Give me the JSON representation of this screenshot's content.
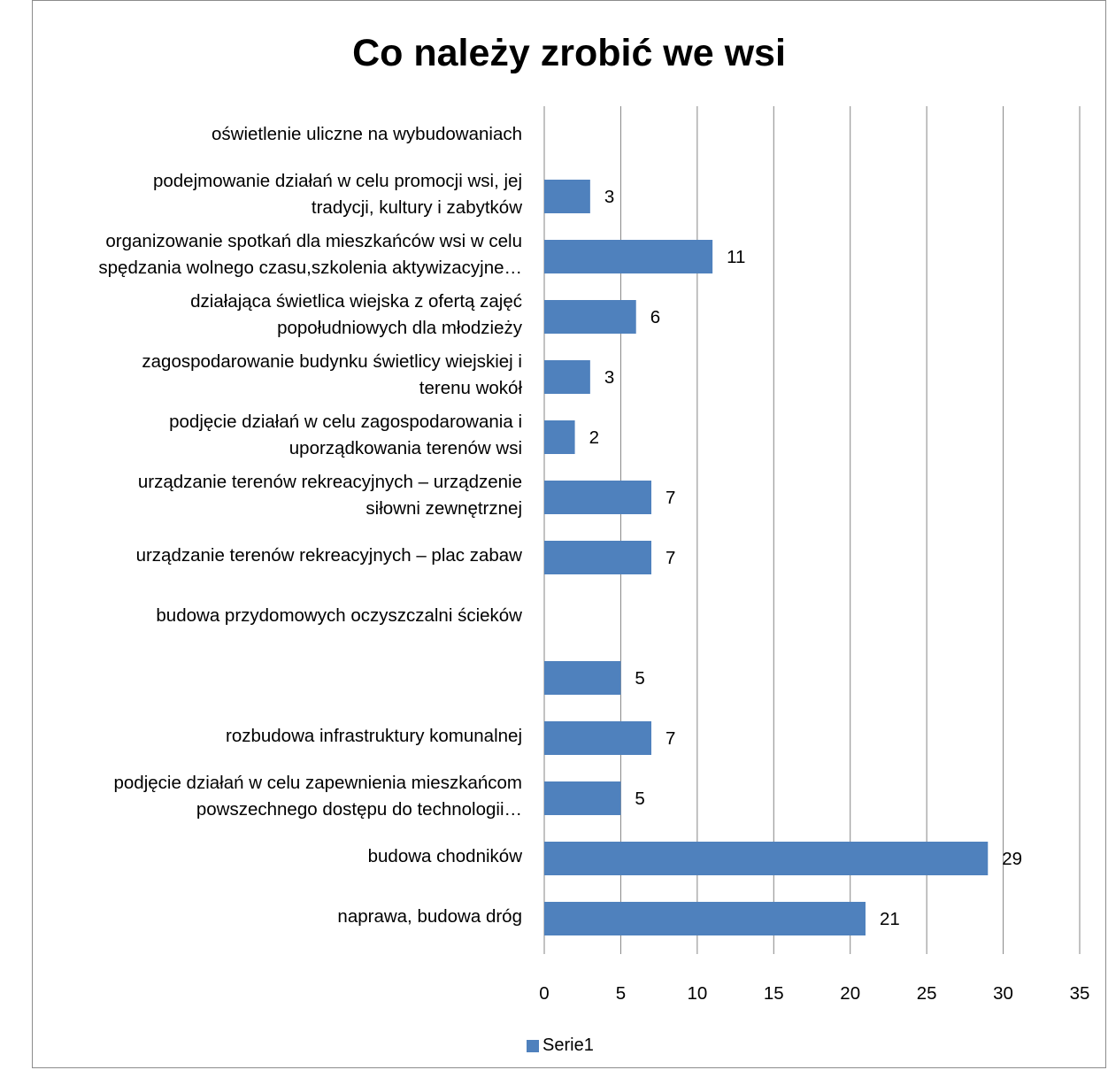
{
  "chart_data": {
    "type": "bar",
    "orientation": "horizontal",
    "title": "Co należy zrobić we wsi",
    "categories": [
      "naprawa, budowa dróg",
      "budowa chodników",
      "podjęcie działań w celu zapewnienia mieszkańcom powszechnego dostępu do technologii…",
      "rozbudowa infrastruktury komunalnej",
      "",
      "budowa przydomowych oczyszczalni ścieków",
      "urządzanie terenów rekreacyjnych – plac zabaw",
      "urządzanie terenów rekreacyjnych – urządzenie siłowni zewnętrznej",
      "podjęcie działań w celu zagospodarowania i uporządkowania terenów wsi",
      "zagospodarowanie budynku świetlicy wiejskiej i terenu wokół",
      "działająca świetlica wiejska z ofertą zajęć popołudniowych dla młodzieży",
      "organizowanie spotkań dla mieszkańców wsi w celu spędzania wolnego czasu,szkolenia aktywizacyjne…",
      "podejmowanie działań w celu promocji wsi, jej tradycji, kultury i zabytków",
      "oświetlenie uliczne na wybudowaniach"
    ],
    "label_lines": [
      [
        "naprawa, budowa dróg"
      ],
      [
        "budowa chodników"
      ],
      [
        "podjęcie działań w celu zapewnienia mieszkańcom",
        "powszechnego dostępu do technologii…"
      ],
      [
        "rozbudowa infrastruktury komunalnej"
      ],
      [],
      [
        "budowa przydomowych oczyszczalni ścieków"
      ],
      [
        "urządzanie terenów rekreacyjnych – plac zabaw"
      ],
      [
        "urządzanie terenów rekreacyjnych – urządzenie",
        "siłowni zewnętrznej"
      ],
      [
        "podjęcie działań w celu zagospodarowania i",
        "uporządkowania terenów wsi"
      ],
      [
        "zagospodarowanie budynku świetlicy wiejskiej i",
        "terenu wokół"
      ],
      [
        "działająca świetlica wiejska z ofertą zajęć",
        "popołudniowych dla młodzieży"
      ],
      [
        "organizowanie spotkań dla mieszkańców  wsi w celu",
        "spędzania wolnego czasu,szkolenia aktywizacyjne…"
      ],
      [
        "podejmowanie działań w celu promocji wsi, jej",
        "tradycji, kultury i zabytków"
      ],
      [
        "oświetlenie uliczne na wybudowaniach"
      ]
    ],
    "series": [
      {
        "name": "Serie1",
        "values": [
          21,
          29,
          5,
          7,
          5,
          null,
          7,
          7,
          2,
          3,
          6,
          11,
          3,
          null
        ],
        "color": "#4f81bd"
      }
    ],
    "xlim": [
      0,
      35
    ],
    "xticks": [
      0,
      5,
      10,
      15,
      20,
      25,
      30,
      35
    ],
    "grid": true,
    "gridline_color": "#868686",
    "data_labels": true,
    "legend_position": "bottom"
  }
}
